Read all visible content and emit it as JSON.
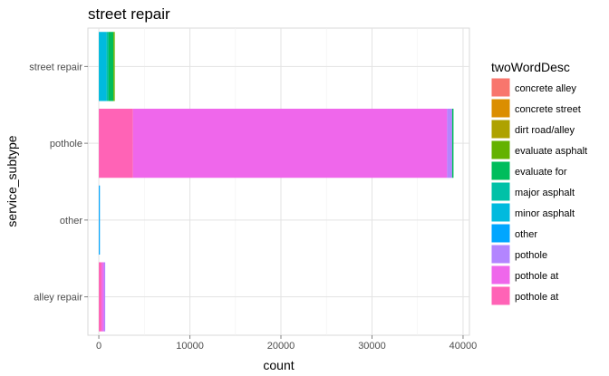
{
  "chart_data": {
    "type": "bar",
    "orientation": "horizontal",
    "stacked": true,
    "title": "street repair",
    "xlabel": "count",
    "ylabel": "service_subtype",
    "xlim": [
      -1200,
      40700
    ],
    "xticks": [
      0,
      10000,
      20000,
      30000,
      40000
    ],
    "xtick_labels": [
      "0",
      "10000",
      "20000",
      "30000",
      "40000"
    ],
    "categories": [
      "street repair",
      "pothole",
      "other",
      "alley repair"
    ],
    "grid": true,
    "legend": {
      "title": "twoWordDesc",
      "position": "right"
    },
    "series": [
      {
        "name": "concrete alley",
        "color": "#F8766D",
        "values": [
          0,
          0,
          0,
          0
        ]
      },
      {
        "name": "concrete street",
        "color": "#DB8E00",
        "values": [
          0,
          0,
          0,
          0
        ]
      },
      {
        "name": "dirt road/alley",
        "color": "#AEA200",
        "values": [
          0,
          0,
          0,
          0
        ]
      },
      {
        "name": "evaluate asphalt",
        "color": "#64B200",
        "values": [
          150,
          0,
          0,
          0
        ]
      },
      {
        "name": "evaluate for",
        "color": "#00BD5C",
        "values": [
          550,
          150,
          0,
          0
        ]
      },
      {
        "name": "major asphalt",
        "color": "#00C1A7",
        "values": [
          200,
          0,
          0,
          0
        ]
      },
      {
        "name": "minor asphalt",
        "color": "#00BADE",
        "values": [
          850,
          0,
          0,
          0
        ]
      },
      {
        "name": "other",
        "color": "#00A6FF",
        "values": [
          0,
          0,
          120,
          0
        ]
      },
      {
        "name": "pothole",
        "color": "#B385FF",
        "values": [
          0,
          550,
          0,
          150
        ]
      },
      {
        "name": "pothole  at",
        "color": "#EF67EB",
        "values": [
          0,
          34500,
          0,
          250
        ]
      },
      {
        "name": "pothole at",
        "color": "#FF63B6",
        "values": [
          0,
          3750,
          0,
          300
        ]
      }
    ]
  }
}
